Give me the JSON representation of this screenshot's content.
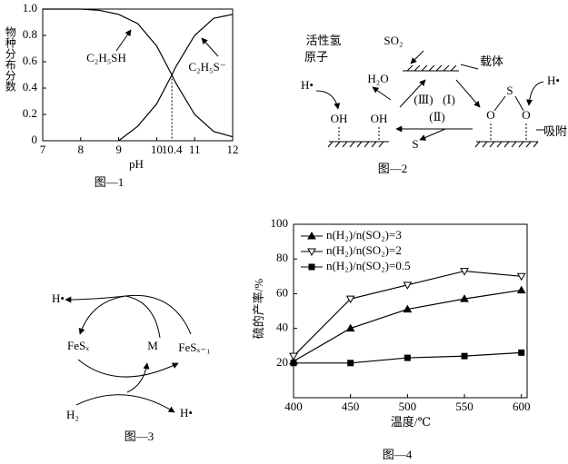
{
  "chart_data": [
    {
      "type": "line",
      "caption": "图—1",
      "x_label": "pH",
      "y_label": "物种分布分数",
      "x": [
        7,
        7.5,
        8,
        8.5,
        9,
        9.5,
        10,
        10.4,
        10.5,
        11,
        11.5,
        12
      ],
      "series": [
        {
          "name": "C₂H₅SH",
          "color": "#000000",
          "values": [
            1,
            1,
            1,
            0.99,
            0.96,
            0.89,
            0.72,
            0.5,
            0.44,
            0.2,
            0.07,
            0.03
          ]
        },
        {
          "name": "C₂H₅S⁻",
          "color": "#000000",
          "values": [
            null,
            null,
            null,
            null,
            0,
            0.11,
            0.28,
            0.5,
            0.56,
            0.8,
            0.93,
            0.96
          ]
        }
      ],
      "reference_line": {
        "x": 10.4,
        "y": 0.5
      },
      "xlim": [
        7,
        12
      ],
      "xticks": [
        7,
        8,
        9,
        10,
        11,
        12
      ],
      "ylim": [
        0,
        1
      ],
      "yticks": [
        0,
        0.2,
        0.4,
        0.6,
        0.8,
        {
          "value": 1,
          "label": "1.0"
        }
      ],
      "grid": false,
      "legend": false
    },
    {
      "type": "line",
      "caption": "图—4",
      "x_label": "温度/℃",
      "y_label": "硫的产率/%",
      "x": [
        400,
        450,
        500,
        550,
        600
      ],
      "series": [
        {
          "name": "n(H₂)/n(SO₂)=3",
          "color": "#000000",
          "marker": "triangle-up-filled",
          "values": [
            21,
            40,
            51,
            57,
            62
          ]
        },
        {
          "name": "n(H₂)/n(SO₂)=2",
          "color": "#000000",
          "marker": "triangle-down-open",
          "values": [
            24,
            57,
            65,
            73,
            70
          ]
        },
        {
          "name": "n(H₂)/n(SO₂)=0.5",
          "color": "#000000",
          "marker": "square-filled",
          "values": [
            20,
            20,
            23,
            24,
            26
          ]
        }
      ],
      "xlim": [
        400,
        605
      ],
      "xticks": [
        400,
        450,
        500,
        550,
        600
      ],
      "ylim": [
        0,
        100
      ],
      "yticks": [
        20,
        40,
        60,
        80,
        100
      ],
      "grid": false,
      "legend": "upper left"
    }
  ],
  "figure2": {
    "texts": [
      "活性氢",
      "原子",
      "H•",
      "SO₂",
      "载体",
      "H₂O",
      "(Ⅲ)",
      "(Ⅰ)",
      "(Ⅱ)",
      "OH",
      "OH",
      "S",
      "O",
      "S",
      "O",
      "吸附",
      "H•"
    ],
    "caption": "图—2"
  },
  "figure3": {
    "texts": [
      "H•",
      "FeSₓ",
      "M",
      "FeSₓ₋₁",
      "H₂",
      "H•"
    ],
    "caption": "图—3"
  }
}
